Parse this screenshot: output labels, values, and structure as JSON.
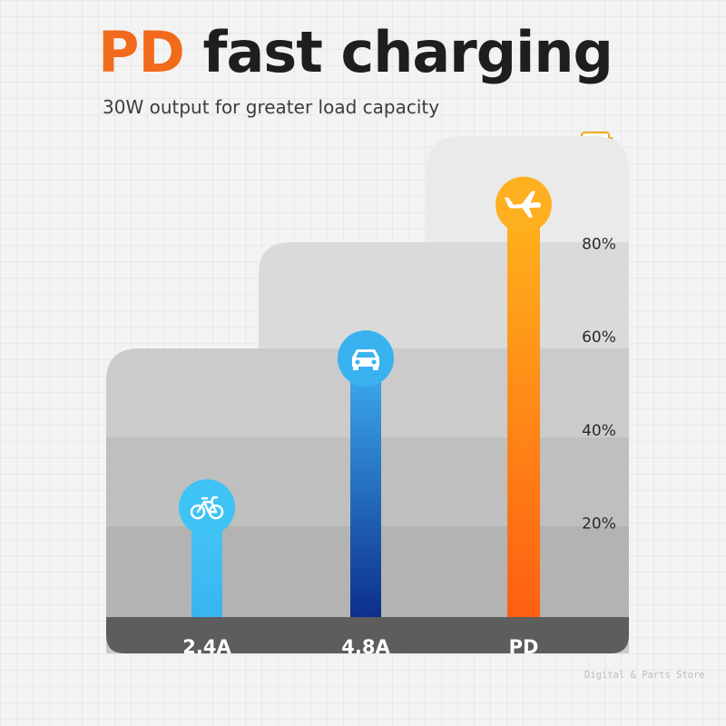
{
  "header": {
    "title_accent": "PD",
    "title_rest": "fast charging",
    "subtitle": "30W output for greater load capacity"
  },
  "icons": {
    "battery": "battery-charging-icon",
    "bars": [
      "bicycle-icon",
      "car-icon",
      "airplane-icon"
    ]
  },
  "colors": {
    "accent": "#f26a1b",
    "bar_2_4A": "#45c2f5",
    "bar_4_8A": "#1d5fc4",
    "bar_PD": "#ff8a1a",
    "axis_band": "#5d5d5d"
  },
  "chart_data": {
    "type": "bar",
    "categories": [
      "2.4A",
      "4.8A",
      "PD"
    ],
    "values": [
      30,
      62,
      95
    ],
    "ylim": [
      0,
      100
    ],
    "y_ticks": [
      "20%",
      "40%",
      "60%",
      "80%"
    ],
    "y_tick_values": [
      20,
      40,
      60,
      80
    ],
    "grid": false,
    "legend": "none"
  },
  "watermark": "Digital & Parts Store"
}
